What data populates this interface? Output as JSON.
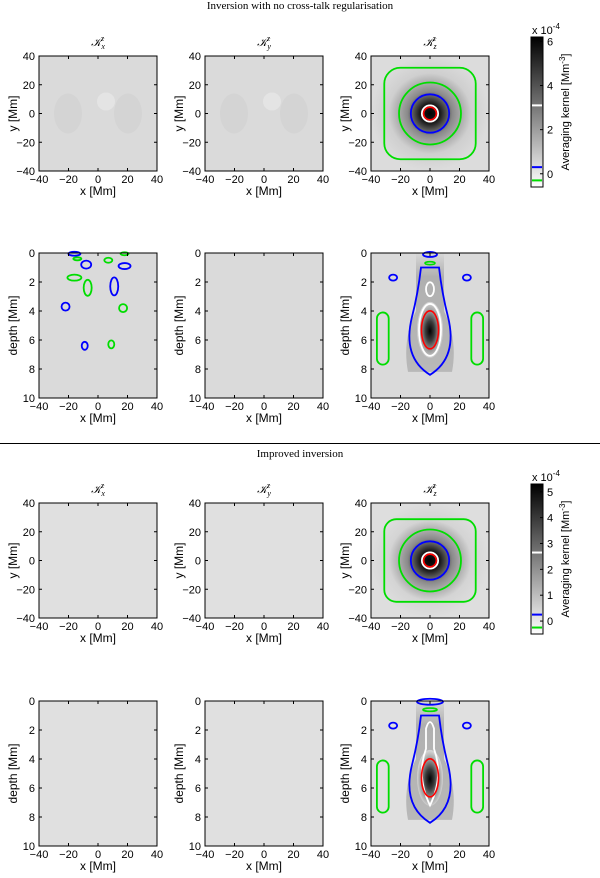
{
  "sections": [
    {
      "title": "Inversion with no cross-talk regularisation",
      "panel_titles": [
        "𝒦",
        "𝒦",
        "𝒦"
      ],
      "panel_title_sub": [
        "x",
        "y",
        "z"
      ],
      "panel_title_sup": "z",
      "colorbar": {
        "exponent_label": "x 10",
        "exponent_power": "-4",
        "label": "Averaging kernel [Mm",
        "label_power": "-3",
        "label_end": "]",
        "ticks": [
          "6",
          "4",
          "2",
          "0"
        ],
        "max": 6.2,
        "min": -0.6,
        "contour_levels": [
          {
            "color": "#ffffff",
            "value": 3.1
          },
          {
            "color": "#0000ff",
            "value": 0.3
          },
          {
            "color": "#00dd00",
            "value": -0.3
          }
        ]
      }
    },
    {
      "title": "Improved inversion",
      "panel_titles": [
        "𝒦",
        "𝒦",
        "𝒦"
      ],
      "panel_title_sub": [
        "x",
        "y",
        "z"
      ],
      "panel_title_sup": "z",
      "colorbar": {
        "exponent_label": "x 10",
        "exponent_power": "-4",
        "label": "Averaging kernel [Mm",
        "label_power": "-3",
        "label_end": "]",
        "ticks": [
          "5",
          "4",
          "3",
          "2",
          "1",
          "0"
        ],
        "max": 5.3,
        "min": -0.5,
        "contour_levels": [
          {
            "color": "#ffffff",
            "value": 2.65
          },
          {
            "color": "#0000ff",
            "value": 0.25
          },
          {
            "color": "#00dd00",
            "value": -0.25
          }
        ]
      }
    }
  ],
  "axes": {
    "x_label": "x [Mm]",
    "y_label": "y [Mm]",
    "depth_label": "depth [Mm]",
    "x_ticks": [
      "−40",
      "−20",
      "0",
      "20",
      "40"
    ],
    "y_ticks": [
      "40",
      "20",
      "0",
      "−20",
      "−40"
    ],
    "depth_ticks": [
      "0",
      "2",
      "4",
      "6",
      "8",
      "10"
    ]
  },
  "chart_data": [
    {
      "type": "heatmap",
      "panel": "top-section horizontal kernels (x vs y)",
      "xlim": [
        -40,
        40
      ],
      "ylim": [
        -40,
        40
      ],
      "xlabel": "x [Mm]",
      "ylabel": "y [Mm]",
      "components": [
        "x",
        "y",
        "z"
      ],
      "peak_value_1e-4": [
        0.2,
        0.1,
        6.2
      ],
      "contour_radii_Mm_for_z": {
        "white": 5,
        "blue": 12,
        "green_inner": 21,
        "green_outer": 31
      }
    },
    {
      "type": "heatmap",
      "panel": "top-section vertical kernels (x vs depth)",
      "xlim": [
        -40,
        40
      ],
      "ylim": [
        10,
        0
      ],
      "xlabel": "x [Mm]",
      "ylabel": "depth [Mm]",
      "components": [
        "x",
        "y",
        "z"
      ],
      "peak_depth_Mm_for_z": 5.2
    },
    {
      "type": "heatmap",
      "panel": "bottom-section horizontal kernels (x vs y)",
      "xlim": [
        -40,
        40
      ],
      "ylim": [
        -40,
        40
      ],
      "xlabel": "x [Mm]",
      "ylabel": "y [Mm]",
      "components": [
        "x",
        "y",
        "z"
      ],
      "peak_value_1e-4": [
        0.05,
        0.05,
        5.3
      ]
    },
    {
      "type": "heatmap",
      "panel": "bottom-section vertical kernels (x vs depth)",
      "xlim": [
        -40,
        40
      ],
      "ylim": [
        10,
        0
      ],
      "xlabel": "x [Mm]",
      "ylabel": "depth [Mm]",
      "components": [
        "x",
        "y",
        "z"
      ],
      "peak_depth_Mm_for_z": 5.2
    }
  ]
}
